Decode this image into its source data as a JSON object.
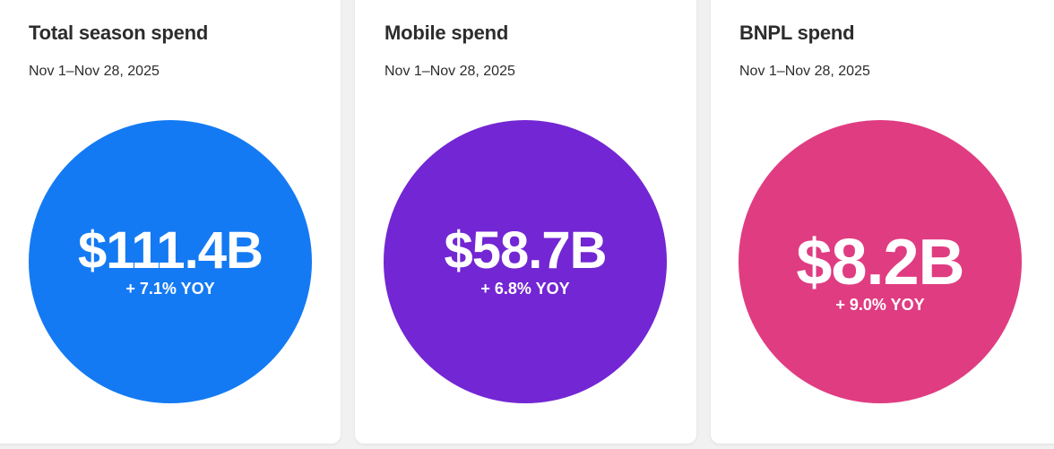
{
  "cards": [
    {
      "title": "Total season spend",
      "date_range": "Nov 1–Nov 28, 2025",
      "amount": "$111.4B",
      "yoy": "+ 7.1% YOY",
      "color": "#147af3"
    },
    {
      "title": "Mobile spend",
      "date_range": "Nov 1–Nov 28, 2025",
      "amount": "$58.7B",
      "yoy": "+ 6.8% YOY",
      "color": "#7326d3"
    },
    {
      "title": "BNPL spend",
      "date_range": "Nov 1–Nov 28, 2025",
      "amount": "$8.2B",
      "yoy": "+ 9.0% YOY",
      "color": "#e03c82"
    }
  ]
}
